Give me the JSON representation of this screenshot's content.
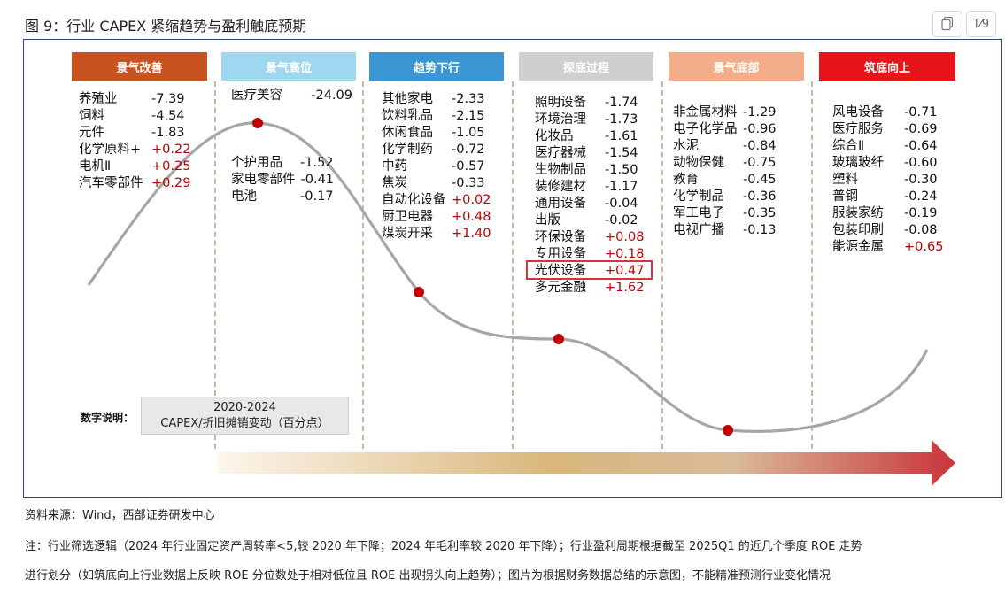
{
  "header": {
    "title": "图 9：行业 CAPEX 紧缩趋势与盈利触底预期",
    "toolbar": {
      "copy_icon": "copy-icon",
      "translate_label": "T⁄9"
    }
  },
  "stages": [
    {
      "label": "景气改善",
      "color": "#c65320"
    },
    {
      "label": "景气高位",
      "color": "#9dd7f0"
    },
    {
      "label": "趋势下行",
      "color": "#3a97d4"
    },
    {
      "label": "探底过程",
      "color": "#cfcfcf"
    },
    {
      "label": "景气底部",
      "color": "#f3ad88"
    },
    {
      "label": "筑底向上",
      "color": "#e8141c"
    }
  ],
  "groups": [
    {
      "items": [
        {
          "name": "养殖业",
          "value": "-7.39"
        },
        {
          "name": "饲料",
          "value": "-4.54"
        },
        {
          "name": "元件",
          "value": "-1.83"
        },
        {
          "name": "化学原料+",
          "value": "+0.22"
        },
        {
          "name": "电机Ⅱ",
          "value": "+0.25"
        },
        {
          "name": "汽车零部件",
          "value": "+0.29"
        }
      ]
    },
    {
      "items": [
        {
          "name": "医疗美容",
          "value": "-24.09"
        }
      ]
    },
    {
      "items": [
        {
          "name": "个护用品",
          "value": "-1.52"
        },
        {
          "name": "家电零部件",
          "value": "-0.41"
        },
        {
          "name": "电池",
          "value": "-0.17"
        }
      ]
    },
    {
      "items": [
        {
          "name": "其他家电",
          "value": "-2.33"
        },
        {
          "name": "饮料乳品",
          "value": "-2.15"
        },
        {
          "name": "休闲食品",
          "value": "-1.05"
        },
        {
          "name": "化学制药",
          "value": "-0.72"
        },
        {
          "name": "中药",
          "value": "-0.57"
        },
        {
          "name": "焦炭",
          "value": "-0.33"
        },
        {
          "name": "自动化设备",
          "value": "+0.02"
        },
        {
          "name": "厨卫电器",
          "value": "+0.48"
        },
        {
          "name": "煤炭开采",
          "value": "+1.40"
        }
      ]
    },
    {
      "items": [
        {
          "name": "照明设备",
          "value": "-1.74"
        },
        {
          "name": "环境治理",
          "value": "-1.73"
        },
        {
          "name": "化妆品",
          "value": "-1.61"
        },
        {
          "name": "医疗器械",
          "value": "-1.54"
        },
        {
          "name": "生物制品",
          "value": "-1.50"
        },
        {
          "name": "装修建材",
          "value": "-1.17"
        },
        {
          "name": "通用设备",
          "value": "-0.04"
        },
        {
          "name": "出版",
          "value": "-0.02"
        },
        {
          "name": "环保设备",
          "value": "+0.08"
        },
        {
          "name": "专用设备",
          "value": "+0.18"
        },
        {
          "name": "光伏设备",
          "value": "+0.47"
        },
        {
          "name": "多元金融",
          "value": "+1.62"
        }
      ]
    },
    {
      "items": [
        {
          "name": "非金属材料",
          "value": "-1.29"
        },
        {
          "name": "电子化学品",
          "value": "-0.96"
        },
        {
          "name": "水泥",
          "value": "-0.84"
        },
        {
          "name": "动物保健",
          "value": "-0.75"
        },
        {
          "name": "教育",
          "value": "-0.45"
        },
        {
          "name": "化学制品",
          "value": "-0.36"
        },
        {
          "name": "军工电子",
          "value": "-0.35"
        },
        {
          "name": "电视广播",
          "value": "-0.13"
        }
      ]
    },
    {
      "items": [
        {
          "name": "风电设备",
          "value": "-0.71"
        },
        {
          "name": "医疗服务",
          "value": "-0.69"
        },
        {
          "name": "综合Ⅱ",
          "value": "-0.64"
        },
        {
          "name": "玻璃玻纤",
          "value": "-0.60"
        },
        {
          "name": "塑料",
          "value": "-0.30"
        },
        {
          "name": "普钢",
          "value": "-0.24"
        },
        {
          "name": "服装家纺",
          "value": "-0.19"
        },
        {
          "name": "包装印刷",
          "value": "-0.08"
        },
        {
          "name": "能源金属",
          "value": "+0.65"
        }
      ]
    }
  ],
  "highlight": "光伏设备",
  "legend": {
    "label": "数字说明：",
    "line1": "2020-2024",
    "line2": "CAPEX/折旧摊销变动（百分点）"
  },
  "colors": {
    "curve": "#a6a6a6",
    "marker": "#c00000",
    "positive": "#c00000",
    "frame": "#2b4a8b"
  },
  "notes": {
    "source": "资料来源：Wind，西部证券研发中心",
    "note1": "注：行业筛选逻辑（2024 年行业固定资产周转率<5,较 2020 年下降；2024 年毛利率较 2020 年下降）；行业盈利周期根据截至 2025Q1 的近几个季度 ROE 走势",
    "note2": "进行划分（如筑底向上行业数据上反映 ROE 分位数处于相对低位且 ROE 出现拐头向上趋势）；图片为根据财务数据总结的示意图，不能精准预测行业变化情况"
  }
}
